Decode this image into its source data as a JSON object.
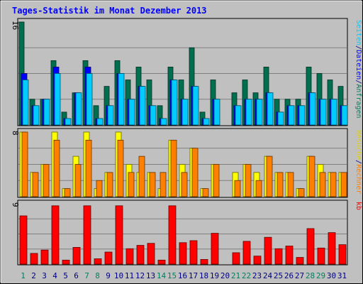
{
  "chart_data": {
    "type": "bar",
    "title": "Tages-Statistik im Monat Dezember 2013",
    "categories": [
      "1",
      "2",
      "3",
      "4",
      "5",
      "6",
      "7",
      "8",
      "9",
      "10",
      "11",
      "12",
      "13",
      "14",
      "15",
      "16",
      "17",
      "18",
      "19",
      "20",
      "21",
      "22",
      "23",
      "24",
      "25",
      "26",
      "27",
      "28",
      "29",
      "30",
      "31"
    ],
    "weekend_days": [
      "1",
      "7",
      "8",
      "14",
      "15",
      "21",
      "22",
      "28",
      "29"
    ],
    "panels": [
      {
        "name": "top",
        "ymax": 16,
        "ymax_label": "16",
        "series": [
          {
            "name": "Anfragen",
            "color": "#006f4f",
            "values": [
              16,
              4,
              4,
              10,
              2,
              5,
              10,
              3,
              6,
              10,
              7,
              9,
              7,
              3,
              9,
              7,
              12,
              2,
              7,
              0,
              5,
              7,
              5,
              9,
              4,
              4,
              4,
              9,
              8,
              7,
              6
            ]
          },
          {
            "name": "Dateien",
            "color": "#0000ff",
            "values": [
              8,
              3,
              4,
              9,
              1,
              5,
              9,
              1,
              3,
              8,
              4,
              6,
              3,
              1,
              7,
              4,
              6,
              1,
              4,
              0,
              3,
              4,
              4,
              5,
              2,
              3,
              3,
              5,
              4,
              4,
              3
            ]
          },
          {
            "name": "Seiten",
            "color": "#00ccff",
            "values": [
              7,
              3,
              4,
              8,
              1,
              5,
              8,
              1,
              3,
              8,
              4,
              6,
              3,
              1,
              7,
              4,
              6,
              1,
              4,
              0,
              3,
              4,
              4,
              5,
              2,
              3,
              3,
              5,
              4,
              4,
              3
            ]
          }
        ],
        "labels": [
          "Anfragen",
          "/",
          "Dateien",
          "/",
          "Seiten"
        ]
      },
      {
        "name": "middle",
        "ymax": 8,
        "ymax_label": "8",
        "series": [
          {
            "name": "Besuche",
            "color": "#ffff00",
            "values": [
              8,
              3,
              4,
              8,
              1,
              5,
              8,
              1,
              3,
              8,
              4,
              3,
              3,
              1,
              7,
              4,
              6,
              1,
              4,
              0,
              3,
              4,
              3,
              5,
              3,
              3,
              1,
              5,
              4,
              3,
              3
            ]
          },
          {
            "name": "Rechner",
            "color": "#ff8000",
            "values": [
              8,
              3,
              4,
              7,
              1,
              4,
              7,
              2,
              3,
              7,
              3,
              5,
              3,
              3,
              7,
              3,
              6,
              1,
              4,
              0,
              2,
              4,
              2,
              5,
              3,
              3,
              1,
              5,
              3,
              3,
              3
            ]
          }
        ],
        "labels": [
          "Rechner",
          "/",
          "Besuche"
        ]
      },
      {
        "name": "bottom",
        "ymax": 9,
        "ymax_label": "9",
        "series": [
          {
            "name": "kb",
            "color": "#ff0000",
            "values": [
              7.2,
              1.6,
              2.1,
              8.7,
              0.6,
              2.5,
              8.7,
              0.8,
              1.8,
              8.7,
              2.3,
              2.8,
              3.1,
              0.6,
              8.7,
              3.2,
              3.5,
              0.7,
              4.6,
              0,
              1.7,
              3.4,
              1.2,
              4.0,
              2.3,
              2.7,
              1.0,
              5.3,
              2.4,
              4.7,
              2.9
            ]
          }
        ],
        "labels": [
          "kb"
        ]
      }
    ],
    "ylabel_colors": {
      "Anfragen": "#00805f",
      "Dateien": "#0000ff",
      "Seiten": "#00ccff",
      "Besuche": "#e0d000",
      "Rechner": "#ff8000",
      "kb": "#ff0000",
      "/": "#000080"
    }
  }
}
